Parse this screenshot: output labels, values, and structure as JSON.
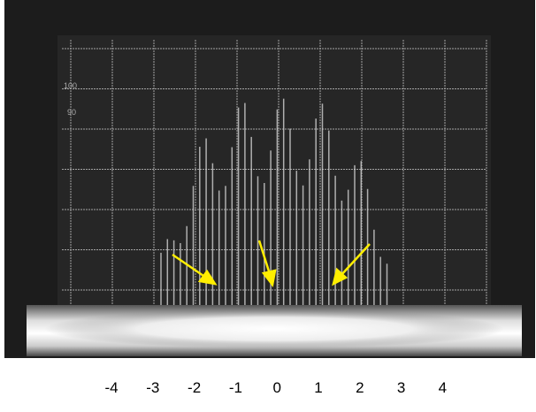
{
  "screen_labels": [
    "100",
    "90"
  ],
  "x_labels": [
    -4,
    -3,
    -2,
    -1,
    0,
    1,
    2,
    3,
    4
  ]
}
